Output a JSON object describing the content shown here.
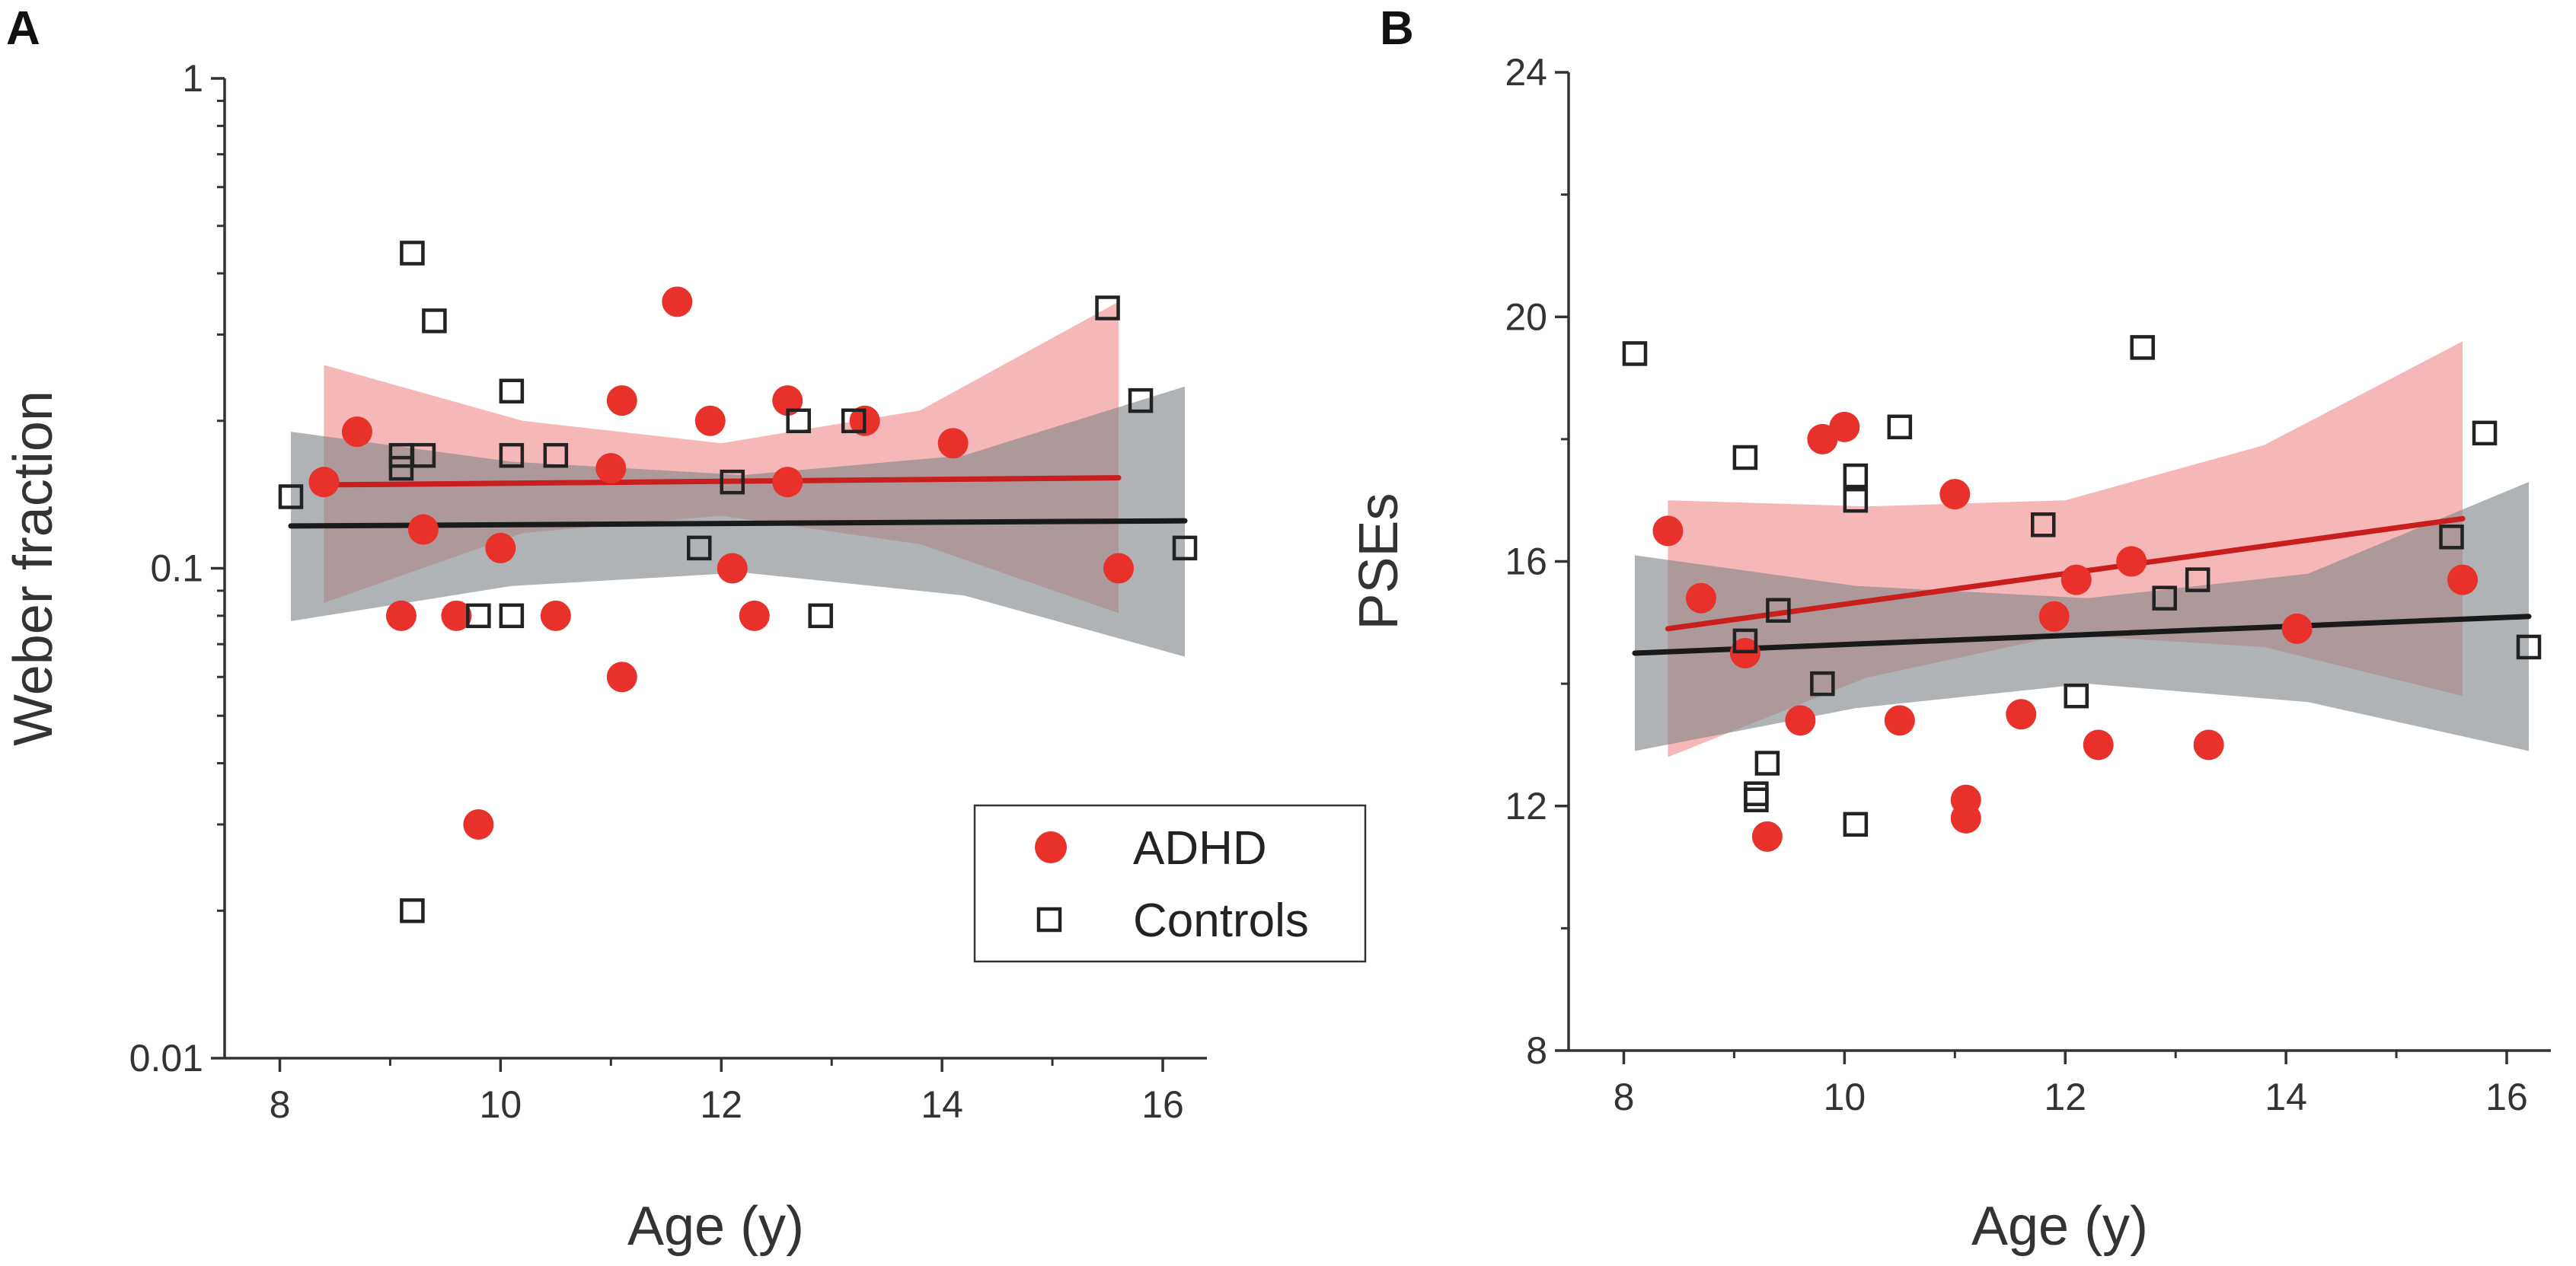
{
  "colors": {
    "adhd": "#e8312a",
    "adhd_line": "#c81e1e",
    "adhd_band": "#f08a8c",
    "controls_marker": "#222222",
    "controls_line": "#1a1a1a",
    "controls_band": "#808488"
  },
  "legend": {
    "adhd": "ADHD",
    "controls": "Controls",
    "position": "bottom-right of panel A"
  },
  "chart_data": [
    {
      "panel": "A",
      "type": "scatter",
      "xlabel": "Age (y)",
      "ylabel": "Weber fraction",
      "yscale": "log",
      "xlim": [
        7.5,
        16.4
      ],
      "ylim": [
        0.01,
        1
      ],
      "xticks": [
        8,
        10,
        12,
        14,
        16
      ],
      "xtick_labels": [
        "8",
        "10",
        "12",
        "14",
        "16"
      ],
      "yticks": [
        0.01,
        0.1,
        1
      ],
      "ytick_labels": [
        "0.01",
        "0.1",
        "1"
      ],
      "series": [
        {
          "name": "ADHD",
          "marker": "filled-circle",
          "points": [
            [
              8.4,
              0.15
            ],
            [
              8.7,
              0.19
            ],
            [
              9.1,
              0.08
            ],
            [
              9.3,
              0.12
            ],
            [
              9.6,
              0.08
            ],
            [
              9.8,
              0.03
            ],
            [
              10.0,
              0.11
            ],
            [
              10.5,
              0.08
            ],
            [
              11.0,
              0.16
            ],
            [
              11.1,
              0.22
            ],
            [
              11.1,
              0.06
            ],
            [
              11.6,
              0.35
            ],
            [
              11.9,
              0.2
            ],
            [
              12.1,
              0.1
            ],
            [
              12.3,
              0.08
            ],
            [
              12.6,
              0.22
            ],
            [
              12.6,
              0.15
            ],
            [
              13.3,
              0.2
            ],
            [
              14.1,
              0.18
            ],
            [
              15.6,
              0.1
            ]
          ],
          "fit": {
            "x": [
              8.4,
              15.6
            ],
            "y": [
              0.148,
              0.153
            ]
          },
          "ci": {
            "x": [
              8.4,
              10.2,
              12.0,
              13.8,
              15.6
            ],
            "lower": [
              0.085,
              0.118,
              0.128,
              0.112,
              0.081
            ],
            "upper": [
              0.26,
              0.2,
              0.18,
              0.21,
              0.35
            ]
          }
        },
        {
          "name": "Controls",
          "marker": "open-square",
          "points": [
            [
              8.1,
              0.14
            ],
            [
              9.1,
              0.17
            ],
            [
              9.1,
              0.16
            ],
            [
              9.2,
              0.44
            ],
            [
              9.2,
              0.02
            ],
            [
              9.3,
              0.17
            ],
            [
              9.4,
              0.32
            ],
            [
              9.8,
              0.08
            ],
            [
              10.1,
              0.23
            ],
            [
              10.1,
              0.17
            ],
            [
              10.1,
              0.08
            ],
            [
              10.5,
              0.17
            ],
            [
              11.8,
              0.11
            ],
            [
              12.1,
              0.15
            ],
            [
              12.7,
              0.2
            ],
            [
              12.9,
              0.08
            ],
            [
              13.2,
              0.2
            ],
            [
              15.5,
              0.34
            ],
            [
              15.8,
              0.22
            ],
            [
              16.2,
              0.11
            ]
          ],
          "fit": {
            "x": [
              8.1,
              16.2
            ],
            "y": [
              0.122,
              0.125
            ]
          },
          "ci": {
            "x": [
              8.1,
              10.1,
              12.2,
              14.2,
              16.2
            ],
            "lower": [
              0.078,
              0.092,
              0.098,
              0.088,
              0.066
            ],
            "upper": [
              0.19,
              0.165,
              0.155,
              0.17,
              0.235
            ]
          }
        }
      ]
    },
    {
      "panel": "B",
      "type": "scatter",
      "xlabel": "Age (y)",
      "ylabel": "PSEs",
      "yscale": "linear",
      "xlim": [
        7.5,
        16.4
      ],
      "ylim": [
        8,
        24
      ],
      "xticks": [
        8,
        10,
        12,
        14,
        16
      ],
      "xtick_labels": [
        "8",
        "10",
        "12",
        "14",
        "16"
      ],
      "yticks": [
        8,
        12,
        16,
        20,
        24
      ],
      "ytick_labels": [
        "8",
        "12",
        "16",
        "20",
        "24"
      ],
      "series": [
        {
          "name": "ADHD",
          "marker": "filled-circle",
          "points": [
            [
              8.4,
              16.5
            ],
            [
              8.7,
              15.4
            ],
            [
              9.1,
              14.5
            ],
            [
              9.3,
              11.5
            ],
            [
              9.6,
              13.4
            ],
            [
              9.8,
              18.0
            ],
            [
              10.0,
              18.2
            ],
            [
              10.5,
              13.4
            ],
            [
              11.0,
              17.1
            ],
            [
              11.1,
              12.1
            ],
            [
              11.1,
              11.8
            ],
            [
              11.6,
              13.5
            ],
            [
              11.9,
              15.1
            ],
            [
              12.1,
              15.7
            ],
            [
              12.3,
              13.0
            ],
            [
              12.6,
              16.0
            ],
            [
              13.3,
              13.0
            ],
            [
              14.1,
              14.9
            ],
            [
              15.6,
              15.7
            ]
          ],
          "fit": {
            "x": [
              8.4,
              15.6
            ],
            "y": [
              14.9,
              16.7
            ]
          },
          "ci": {
            "x": [
              8.4,
              10.2,
              12.0,
              13.8,
              15.6
            ],
            "lower": [
              12.8,
              14.1,
              14.8,
              14.6,
              13.8
            ],
            "upper": [
              17.0,
              16.9,
              17.0,
              17.9,
              19.6
            ]
          }
        },
        {
          "name": "Controls",
          "marker": "open-square",
          "points": [
            [
              8.1,
              19.4
            ],
            [
              9.1,
              17.7
            ],
            [
              9.1,
              14.7
            ],
            [
              9.2,
              12.2
            ],
            [
              9.2,
              12.1
            ],
            [
              9.3,
              12.7
            ],
            [
              9.4,
              15.2
            ],
            [
              9.8,
              14.0
            ],
            [
              10.1,
              17.4
            ],
            [
              10.1,
              17.0
            ],
            [
              10.1,
              11.7
            ],
            [
              10.5,
              18.2
            ],
            [
              11.8,
              16.6
            ],
            [
              12.1,
              13.8
            ],
            [
              12.7,
              19.5
            ],
            [
              12.9,
              15.4
            ],
            [
              13.2,
              15.7
            ],
            [
              15.5,
              16.4
            ],
            [
              15.8,
              18.1
            ],
            [
              16.2,
              14.6
            ]
          ],
          "fit": {
            "x": [
              8.1,
              16.2
            ],
            "y": [
              14.5,
              15.1
            ]
          },
          "ci": {
            "x": [
              8.1,
              10.1,
              12.2,
              14.2,
              16.2
            ],
            "lower": [
              12.9,
              13.6,
              14.0,
              13.7,
              12.9
            ],
            "upper": [
              16.1,
              15.6,
              15.4,
              15.8,
              17.3
            ]
          }
        }
      ]
    }
  ],
  "panels": [
    {
      "label": "A"
    },
    {
      "label": "B"
    }
  ]
}
